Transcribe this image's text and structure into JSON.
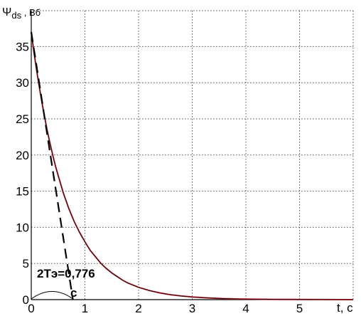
{
  "chart_data": {
    "type": "line",
    "title": "",
    "ylabel_symbol": "Ψ",
    "ylabel_subscript": "ds",
    "ylabel_unit": " , Вб",
    "xlabel": "t, с",
    "xlim": [
      0,
      6.0
    ],
    "ylim": [
      0,
      37
    ],
    "x_ticks": [
      "0",
      "1",
      "2",
      "3",
      "4",
      "5"
    ],
    "y_ticks": [
      "0",
      "5",
      "10",
      "15",
      "20",
      "25",
      "30",
      "35"
    ],
    "grid": true,
    "series": [
      {
        "color": "#d42a3c",
        "x": [
          0,
          0.05,
          0.1,
          0.15,
          0.2,
          0.25,
          0.3,
          0.35,
          0.4,
          0.45,
          0.5,
          0.6,
          0.7,
          0.8,
          0.9,
          1.0,
          1.1,
          1.2,
          1.3,
          1.4,
          1.5,
          1.6,
          1.7,
          1.8,
          1.9,
          2.0,
          2.2,
          2.4,
          2.6,
          2.8,
          3.0,
          3.3,
          3.6,
          3.9,
          4.2,
          4.5,
          5.0,
          5.5,
          6.0
        ],
        "y": [
          37.0,
          34.2,
          31.7,
          29.4,
          27.2,
          25.2,
          23.3,
          21.6,
          20.0,
          18.5,
          17.2,
          14.7,
          12.6,
          10.8,
          9.3,
          8.0,
          6.8,
          5.9,
          5.0,
          4.3,
          3.7,
          3.2,
          2.7,
          2.3,
          2.0,
          1.7,
          1.26,
          0.92,
          0.68,
          0.5,
          0.37,
          0.23,
          0.14,
          0.09,
          0.06,
          0.04,
          0.02,
          0.01,
          0.0
        ]
      },
      {
        "color": "#000000",
        "x": [
          0,
          0.05,
          0.1,
          0.15,
          0.2,
          0.25,
          0.3,
          0.35,
          0.4,
          0.45,
          0.5,
          0.6,
          0.7,
          0.8,
          0.9,
          1.0,
          1.1,
          1.2,
          1.3,
          1.4,
          1.5,
          1.6,
          1.7,
          1.8,
          1.9,
          2.0,
          2.2,
          2.4,
          2.6,
          2.8,
          3.0,
          3.3,
          3.6,
          3.9,
          4.2,
          4.5,
          5.0,
          5.5,
          6.0
        ],
        "y": [
          37.0,
          34.2,
          31.7,
          29.4,
          27.2,
          25.2,
          23.3,
          21.6,
          20.0,
          18.5,
          17.2,
          14.7,
          12.6,
          10.8,
          9.3,
          8.0,
          6.8,
          5.9,
          5.0,
          4.3,
          3.7,
          3.2,
          2.7,
          2.3,
          2.0,
          1.7,
          1.26,
          0.92,
          0.68,
          0.5,
          0.37,
          0.23,
          0.14,
          0.09,
          0.06,
          0.04,
          0.02,
          0.01,
          0.0
        ]
      }
    ],
    "tangent": {
      "x": [
        0,
        0.776
      ],
      "y": [
        37,
        0
      ],
      "style": "dashed",
      "color": "#000000"
    },
    "brace": {
      "x_start": 0,
      "x_end": 0.776,
      "color": "#000000"
    },
    "annotation_value": "2Tэ=0,776",
    "annotation_unit": "с"
  }
}
